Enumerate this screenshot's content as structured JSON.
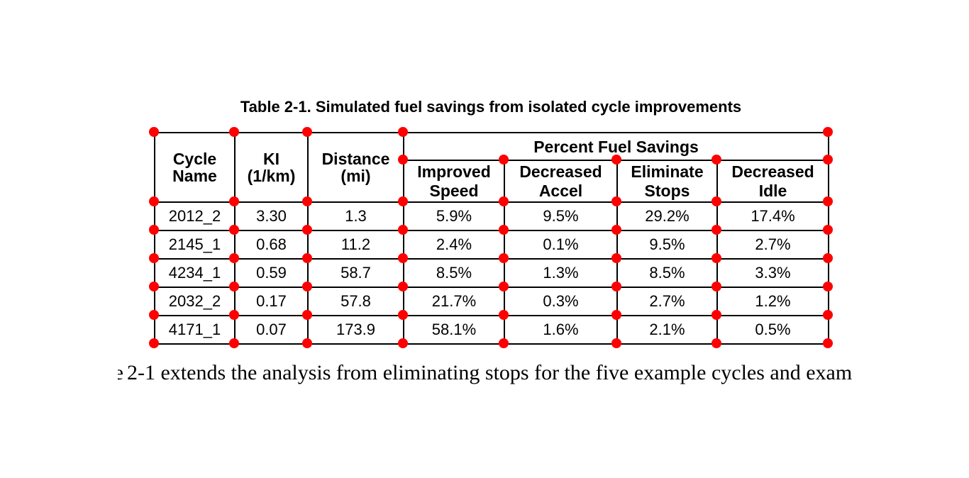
{
  "table": {
    "title": "Table 2-1. Simulated fuel savings from isolated cycle improvements",
    "columns": [
      "Cycle\nName",
      "KI\n(1/km)",
      "Distance\n(mi)"
    ],
    "group_header": "Percent Fuel Savings",
    "sub_headers": [
      "Improved\nSpeed",
      "Decreased\nAccel",
      "Eliminate\nStops",
      "Decreased\nIdle"
    ],
    "rows": [
      [
        "2012_2",
        "3.30",
        "1.3",
        "5.9%",
        "9.5%",
        "29.2%",
        "17.4%"
      ],
      [
        "2145_1",
        "0.68",
        "11.2",
        "2.4%",
        "0.1%",
        "9.5%",
        "2.7%"
      ],
      [
        "4234_1",
        "0.59",
        "58.7",
        "8.5%",
        "1.3%",
        "8.5%",
        "3.3%"
      ],
      [
        "2032_2",
        "0.17",
        "57.8",
        "21.7%",
        "0.3%",
        "2.7%",
        "1.2%"
      ],
      [
        "4171_1",
        "0.07",
        "173.9",
        "58.1%",
        "1.6%",
        "2.1%",
        "0.5%"
      ]
    ]
  },
  "body_text": {
    "partial_char": "e",
    "sentence": "2-1 extends the analysis from eliminating stops for the five example cycles and exam"
  },
  "annotation": {
    "marker_color": "#ff0000",
    "line_color": "#000000"
  }
}
